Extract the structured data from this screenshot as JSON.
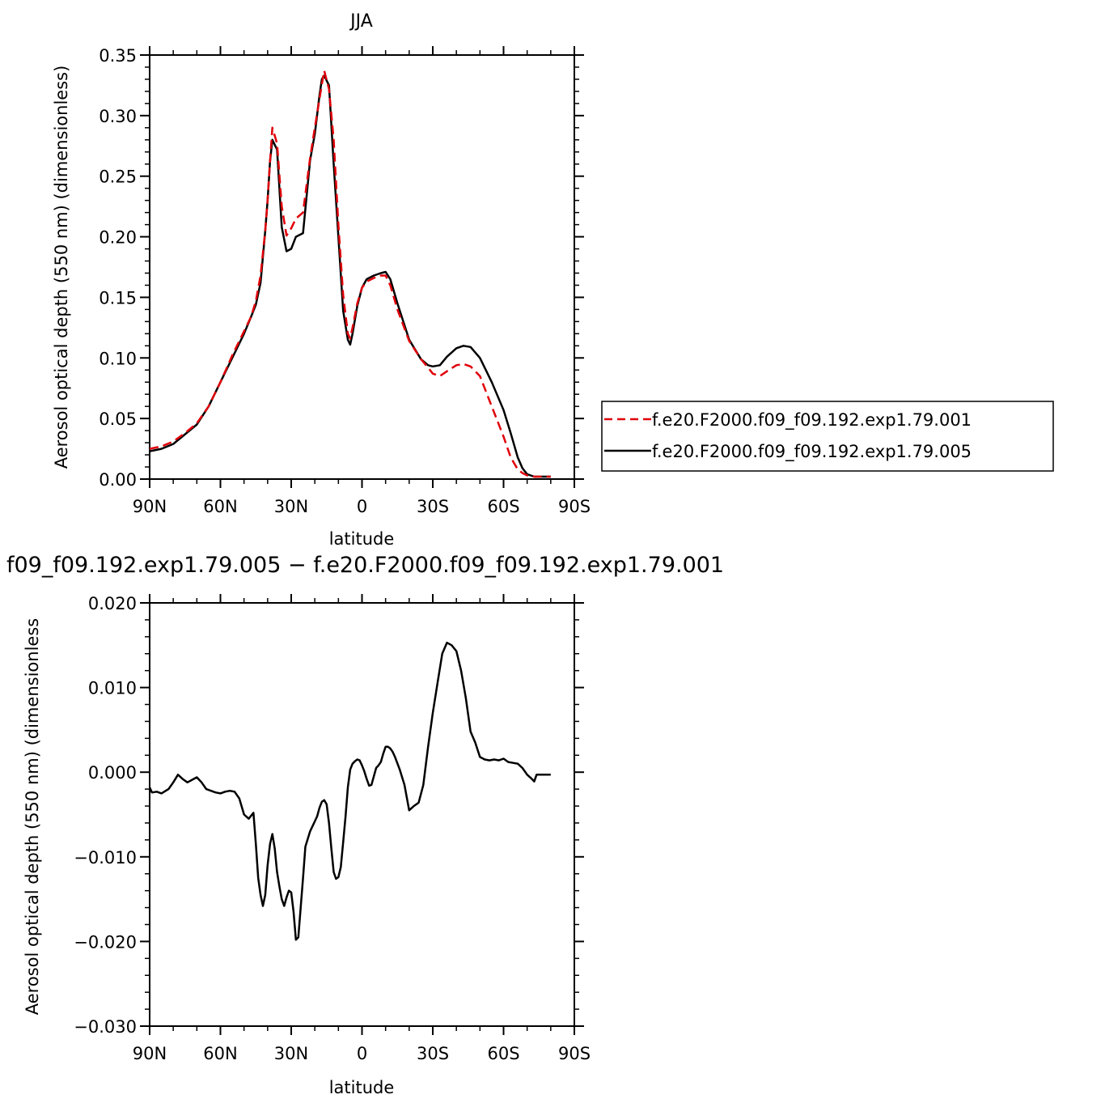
{
  "chart_data": [
    {
      "type": "line",
      "title": "JJA",
      "xlabel": "latitude",
      "ylabel": "Aerosol optical depth (550 nm) (dimensionless)",
      "xlim": [
        -90,
        90
      ],
      "ylim": [
        0,
        0.35
      ],
      "xticks": [
        {
          "value": -90,
          "label": "90N"
        },
        {
          "value": -60,
          "label": "60N"
        },
        {
          "value": -30,
          "label": "30N"
        },
        {
          "value": 0,
          "label": "0"
        },
        {
          "value": 30,
          "label": "30S"
        },
        {
          "value": 60,
          "label": "60S"
        },
        {
          "value": 90,
          "label": "90S"
        }
      ],
      "yticks": [
        {
          "value": 0,
          "label": "0.00"
        },
        {
          "value": 0.05,
          "label": "0.05"
        },
        {
          "value": 0.1,
          "label": "0.10"
        },
        {
          "value": 0.15,
          "label": "0.15"
        },
        {
          "value": 0.2,
          "label": "0.20"
        },
        {
          "value": 0.25,
          "label": "0.25"
        },
        {
          "value": 0.3,
          "label": "0.30"
        },
        {
          "value": 0.35,
          "label": "0.35"
        }
      ],
      "legend_position": "right",
      "series": [
        {
          "name": "f.e20.F2000.f09_f09.192.exp1.79.001",
          "color": "#e0000a",
          "style": "dashed",
          "x": [
            -90,
            -85,
            -80,
            -75,
            -70,
            -65,
            -60,
            -55,
            -50,
            -47,
            -45,
            -43,
            -41,
            -40,
            -39,
            -38,
            -36,
            -34,
            -32,
            -30,
            -28,
            -25,
            -22,
            -20,
            -18,
            -17,
            -16,
            -14,
            -12,
            -10,
            -8,
            -6,
            -5,
            -4,
            -2,
            0,
            2,
            5,
            8,
            10,
            12,
            15,
            20,
            25,
            28,
            30,
            33,
            36,
            40,
            43,
            46,
            50,
            55,
            60,
            63,
            66,
            68,
            70,
            73,
            75,
            78,
            80
          ],
          "y": [
            0.025,
            0.027,
            0.031,
            0.038,
            0.046,
            0.06,
            0.08,
            0.102,
            0.122,
            0.134,
            0.147,
            0.168,
            0.205,
            0.23,
            0.262,
            0.29,
            0.277,
            0.225,
            0.201,
            0.207,
            0.215,
            0.22,
            0.265,
            0.29,
            0.314,
            0.326,
            0.337,
            0.322,
            0.28,
            0.21,
            0.152,
            0.12,
            0.116,
            0.125,
            0.145,
            0.158,
            0.163,
            0.166,
            0.168,
            0.168,
            0.16,
            0.14,
            0.114,
            0.099,
            0.092,
            0.087,
            0.085,
            0.089,
            0.094,
            0.095,
            0.093,
            0.085,
            0.06,
            0.035,
            0.018,
            0.008,
            0.005,
            0.003,
            0.002,
            0.002,
            0.002,
            0.002
          ]
        },
        {
          "name": "f.e20.F2000.f09_f09.192.exp1.79.005",
          "color": "#000000",
          "style": "solid",
          "x": [
            -90,
            -85,
            -80,
            -75,
            -70,
            -65,
            -60,
            -55,
            -50,
            -47,
            -45,
            -43,
            -41,
            -40,
            -39,
            -38,
            -36,
            -34,
            -32,
            -30,
            -28,
            -25,
            -22,
            -20,
            -18,
            -17,
            -16,
            -14,
            -12,
            -10,
            -8,
            -6,
            -5,
            -4,
            -2,
            0,
            2,
            5,
            8,
            10,
            12,
            15,
            20,
            25,
            28,
            30,
            33,
            36,
            40,
            43,
            46,
            50,
            55,
            60,
            63,
            66,
            68,
            70,
            73,
            75,
            78,
            80
          ],
          "y": [
            0.023,
            0.025,
            0.029,
            0.037,
            0.045,
            0.06,
            0.08,
            0.1,
            0.12,
            0.134,
            0.144,
            0.162,
            0.205,
            0.23,
            0.262,
            0.28,
            0.272,
            0.208,
            0.188,
            0.19,
            0.2,
            0.203,
            0.263,
            0.285,
            0.317,
            0.33,
            0.333,
            0.325,
            0.26,
            0.2,
            0.139,
            0.115,
            0.111,
            0.12,
            0.143,
            0.158,
            0.165,
            0.168,
            0.17,
            0.171,
            0.165,
            0.145,
            0.115,
            0.099,
            0.094,
            0.093,
            0.094,
            0.101,
            0.108,
            0.11,
            0.109,
            0.1,
            0.08,
            0.057,
            0.038,
            0.018,
            0.009,
            0.004,
            0.002,
            0.002,
            0.002,
            0.002
          ]
        }
      ],
      "legend": [
        "f.e20.F2000.f09_f09.192.exp1.79.001",
        "f.e20.F2000.f09_f09.192.exp1.79.005"
      ]
    },
    {
      "type": "line",
      "title": "f09_f09.192.exp1.79.005 − f.e20.F2000.f09_f09.192.exp1.79.001",
      "xlabel": "latitude",
      "ylabel": "Aerosol optical depth (550 nm) (dimensionless",
      "xlim": [
        -90,
        90
      ],
      "ylim": [
        -0.03,
        0.02
      ],
      "xticks": [
        {
          "value": -90,
          "label": "90N"
        },
        {
          "value": -60,
          "label": "60N"
        },
        {
          "value": -30,
          "label": "30N"
        },
        {
          "value": 0,
          "label": "0"
        },
        {
          "value": 30,
          "label": "30S"
        },
        {
          "value": 60,
          "label": "60S"
        },
        {
          "value": 90,
          "label": "90S"
        }
      ],
      "yticks": [
        {
          "value": 0.02,
          "label": "0.020"
        },
        {
          "value": 0.01,
          "label": "0.010"
        },
        {
          "value": 0,
          "label": "0.000"
        },
        {
          "value": -0.01,
          "label": "−0.010"
        },
        {
          "value": -0.02,
          "label": "−0.020"
        },
        {
          "value": -0.03,
          "label": "−0.030"
        }
      ],
      "series": [
        {
          "color": "#000000",
          "style": "solid",
          "x": [
            -90,
            -89,
            -87,
            -85,
            -82,
            -80,
            -78,
            -76,
            -74,
            -72,
            -70,
            -68,
            -66,
            -64,
            -62,
            -60,
            -58,
            -56,
            -54,
            -52,
            -50,
            -48,
            -46,
            -45,
            -44,
            -43,
            -42,
            -41,
            -40,
            -39,
            -38,
            -37,
            -36,
            -35,
            -34,
            -33,
            -32,
            -31,
            -30,
            -29,
            -28,
            -27,
            -26,
            -25,
            -24,
            -22,
            -20,
            -19,
            -18,
            -17,
            -16,
            -15,
            -14,
            -13,
            -12,
            -11,
            -10,
            -9,
            -8,
            -7,
            -6,
            -5,
            -4,
            -3,
            -2,
            -1,
            0,
            1,
            2,
            3,
            4,
            5,
            6,
            7,
            8,
            9,
            10,
            11,
            12,
            13,
            14,
            16,
            18,
            20,
            22,
            24,
            26,
            28,
            30,
            32,
            34,
            36,
            38,
            40,
            42,
            44,
            46,
            48,
            50,
            52,
            54,
            56,
            58,
            60,
            62,
            64,
            66,
            68,
            70,
            72,
            73,
            74,
            76,
            78,
            80
          ],
          "y": [
            -0.0018,
            -0.0024,
            -0.0023,
            -0.0025,
            -0.002,
            -0.0012,
            -0.0003,
            -0.0008,
            -0.0012,
            -0.0009,
            -0.0006,
            -0.0012,
            -0.002,
            -0.0022,
            -0.0024,
            -0.0025,
            -0.0023,
            -0.0022,
            -0.0023,
            -0.0031,
            -0.005,
            -0.0055,
            -0.0048,
            -0.0085,
            -0.0125,
            -0.0145,
            -0.0158,
            -0.0145,
            -0.011,
            -0.0085,
            -0.0073,
            -0.009,
            -0.0118,
            -0.0135,
            -0.015,
            -0.0158,
            -0.0148,
            -0.014,
            -0.0142,
            -0.0165,
            -0.0198,
            -0.0195,
            -0.016,
            -0.0125,
            -0.0088,
            -0.007,
            -0.0058,
            -0.0052,
            -0.0042,
            -0.0035,
            -0.0033,
            -0.0038,
            -0.006,
            -0.009,
            -0.0118,
            -0.0126,
            -0.0124,
            -0.0112,
            -0.0083,
            -0.0053,
            -0.0018,
            0.0003,
            0.001,
            0.0013,
            0.0015,
            0.0014,
            0.0008,
            0.0001,
            -0.0008,
            -0.0016,
            -0.0015,
            -0.0005,
            0.0005,
            0.0008,
            0.0012,
            0.0022,
            0.003,
            0.003,
            0.0028,
            0.0024,
            0.0018,
            0.0003,
            -0.0015,
            -0.0045,
            -0.004,
            -0.0036,
            -0.0015,
            0.003,
            0.007,
            0.0105,
            0.014,
            0.0153,
            0.015,
            0.0143,
            0.012,
            0.0088,
            0.0048,
            0.0035,
            0.0018,
            0.0015,
            0.0014,
            0.0015,
            0.0014,
            0.0016,
            0.0012,
            0.0011,
            0.001,
            0.0005,
            -0.0003,
            -0.0008,
            -0.0011,
            -0.0003,
            -0.0003,
            -0.0003,
            -0.0003
          ]
        }
      ]
    }
  ]
}
